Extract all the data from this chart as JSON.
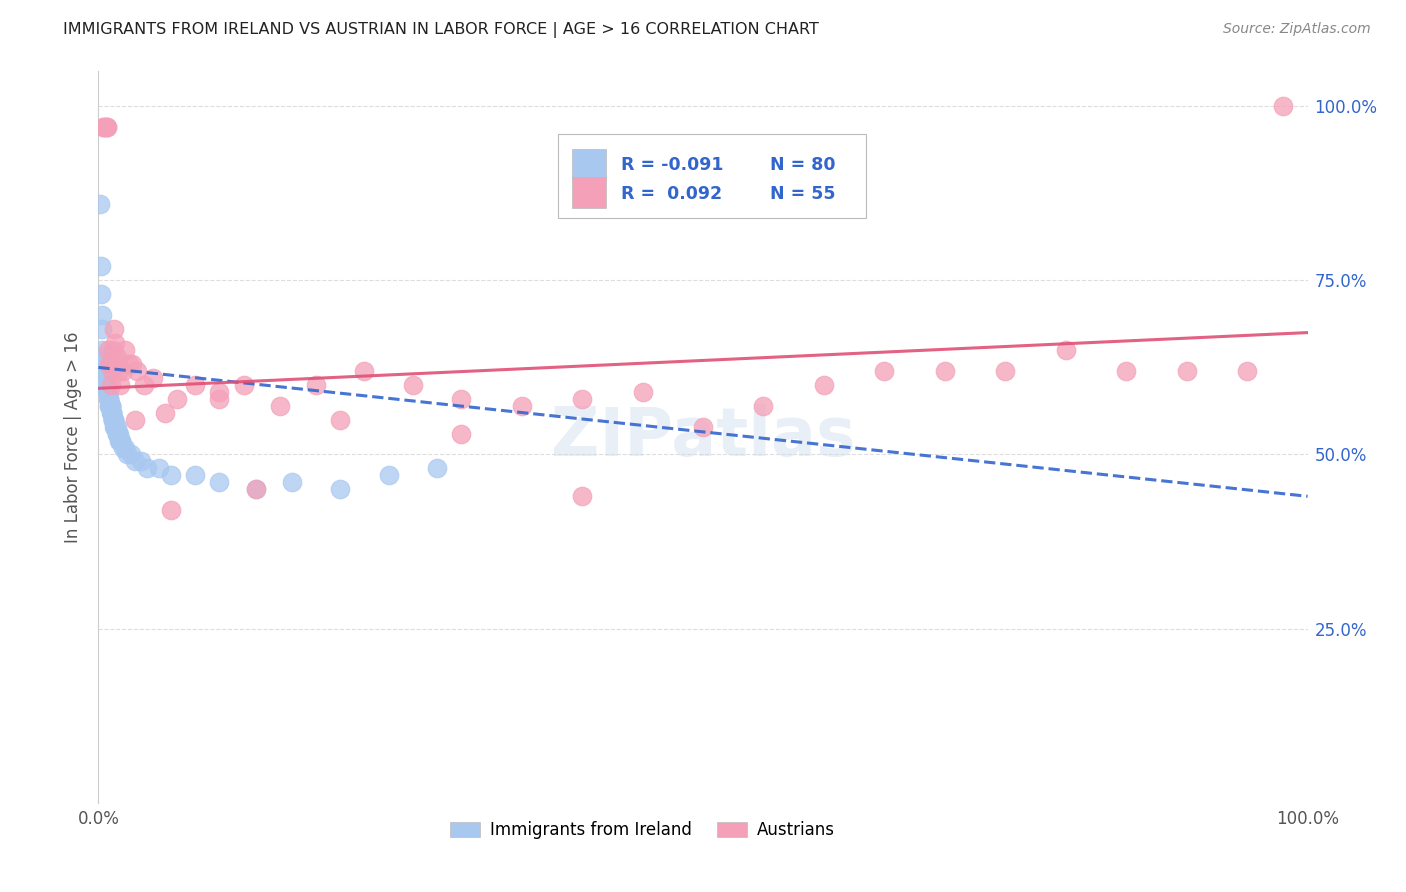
{
  "title": "IMMIGRANTS FROM IRELAND VS AUSTRIAN IN LABOR FORCE | AGE > 16 CORRELATION CHART",
  "source_text": "Source: ZipAtlas.com",
  "ylabel": "In Labor Force | Age > 16",
  "legend_ireland_r": "-0.091",
  "legend_ireland_n": "80",
  "legend_austrians_r": "0.092",
  "legend_austrians_n": "55",
  "legend_label_ireland": "Immigrants from Ireland",
  "legend_label_austrians": "Austrians",
  "color_ireland": "#A8C8F0",
  "color_austrians": "#F4A0B8",
  "trendline_ireland_color": "#3366CC",
  "trendline_austrians_color": "#E05075",
  "watermark": "ZIPatlas",
  "background_color": "#FFFFFF",
  "grid_color": "#DDDDDD",
  "xlim": [
    0.0,
    1.0
  ],
  "ylim": [
    0.0,
    1.05
  ],
  "ireland_x": [
    0.001,
    0.002,
    0.002,
    0.003,
    0.003,
    0.003,
    0.004,
    0.004,
    0.004,
    0.004,
    0.005,
    0.005,
    0.005,
    0.005,
    0.006,
    0.006,
    0.006,
    0.006,
    0.007,
    0.007,
    0.007,
    0.007,
    0.007,
    0.008,
    0.008,
    0.008,
    0.008,
    0.009,
    0.009,
    0.009,
    0.009,
    0.009,
    0.01,
    0.01,
    0.01,
    0.01,
    0.01,
    0.011,
    0.011,
    0.011,
    0.011,
    0.011,
    0.012,
    0.012,
    0.012,
    0.012,
    0.013,
    0.013,
    0.013,
    0.013,
    0.014,
    0.014,
    0.014,
    0.015,
    0.015,
    0.015,
    0.016,
    0.016,
    0.017,
    0.017,
    0.018,
    0.018,
    0.019,
    0.019,
    0.02,
    0.022,
    0.024,
    0.027,
    0.03,
    0.035,
    0.04,
    0.05,
    0.06,
    0.08,
    0.1,
    0.13,
    0.16,
    0.2,
    0.24,
    0.28
  ],
  "ireland_y": [
    0.86,
    0.77,
    0.73,
    0.7,
    0.68,
    0.65,
    0.64,
    0.63,
    0.63,
    0.62,
    0.62,
    0.62,
    0.61,
    0.61,
    0.61,
    0.61,
    0.61,
    0.6,
    0.6,
    0.6,
    0.6,
    0.6,
    0.59,
    0.59,
    0.59,
    0.59,
    0.58,
    0.58,
    0.58,
    0.58,
    0.57,
    0.57,
    0.57,
    0.57,
    0.57,
    0.57,
    0.56,
    0.56,
    0.56,
    0.56,
    0.56,
    0.56,
    0.55,
    0.55,
    0.55,
    0.55,
    0.55,
    0.55,
    0.55,
    0.54,
    0.54,
    0.54,
    0.54,
    0.54,
    0.53,
    0.53,
    0.53,
    0.53,
    0.53,
    0.52,
    0.52,
    0.52,
    0.52,
    0.52,
    0.51,
    0.51,
    0.5,
    0.5,
    0.49,
    0.49,
    0.48,
    0.48,
    0.47,
    0.47,
    0.46,
    0.45,
    0.46,
    0.45,
    0.47,
    0.48
  ],
  "austrians_x": [
    0.004,
    0.005,
    0.006,
    0.007,
    0.007,
    0.008,
    0.009,
    0.01,
    0.01,
    0.011,
    0.012,
    0.013,
    0.014,
    0.015,
    0.016,
    0.017,
    0.018,
    0.02,
    0.022,
    0.025,
    0.028,
    0.032,
    0.038,
    0.045,
    0.055,
    0.065,
    0.08,
    0.1,
    0.12,
    0.15,
    0.18,
    0.22,
    0.26,
    0.3,
    0.35,
    0.4,
    0.45,
    0.5,
    0.55,
    0.6,
    0.65,
    0.7,
    0.75,
    0.8,
    0.85,
    0.9,
    0.95,
    0.98,
    0.1,
    0.2,
    0.3,
    0.4,
    0.03,
    0.06,
    0.13
  ],
  "austrians_y": [
    0.97,
    0.97,
    0.97,
    0.97,
    0.97,
    0.65,
    0.63,
    0.63,
    0.6,
    0.62,
    0.65,
    0.68,
    0.66,
    0.64,
    0.63,
    0.62,
    0.6,
    0.62,
    0.65,
    0.63,
    0.63,
    0.62,
    0.6,
    0.61,
    0.56,
    0.58,
    0.6,
    0.59,
    0.6,
    0.57,
    0.6,
    0.62,
    0.6,
    0.58,
    0.57,
    0.58,
    0.59,
    0.54,
    0.57,
    0.6,
    0.62,
    0.62,
    0.62,
    0.65,
    0.62,
    0.62,
    0.62,
    1.0,
    0.58,
    0.55,
    0.53,
    0.44,
    0.55,
    0.42,
    0.45
  ],
  "trend_ire_x0": 0.0,
  "trend_ire_y0": 0.625,
  "trend_ire_x1": 1.0,
  "trend_ire_y1": 0.44,
  "trend_aus_x0": 0.0,
  "trend_aus_y0": 0.595,
  "trend_aus_x1": 1.0,
  "trend_aus_y1": 0.675
}
